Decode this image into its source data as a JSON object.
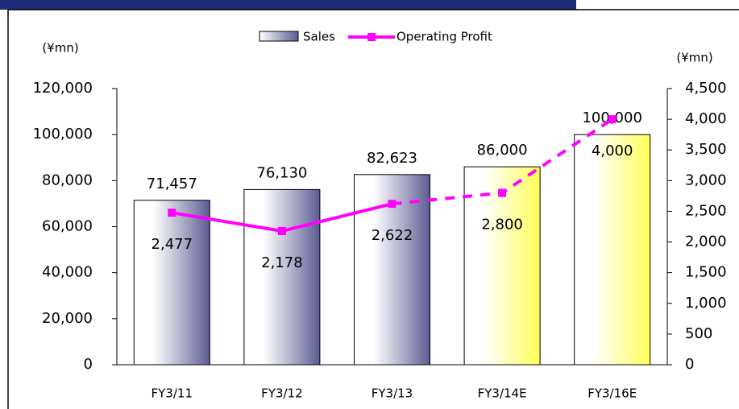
{
  "chart_data": {
    "type": "bar_line",
    "categories": [
      "FY3/11",
      "FY3/12",
      "FY3/13",
      "FY3/14E",
      "FY3/16E"
    ],
    "ylabel": "(¥mn)",
    "y2label": "(¥mn)",
    "series": [
      {
        "name": "Sales",
        "type": "bar",
        "color": "#5a5a92",
        "colors": [
          "#5a5a92",
          "#5a5a92",
          "#5a5a92",
          "#ffff55",
          "#ffff55"
        ],
        "values": [
          71457,
          76130,
          82623,
          86000,
          100000
        ],
        "value_labels": [
          "71,457",
          "76,130",
          "82,623",
          "86,000",
          "100,000"
        ]
      },
      {
        "name": "Operating Profit",
        "type": "line",
        "axis": "y2",
        "color": "#ff00ff",
        "dash_from_index": 2,
        "values": [
          2477,
          2178,
          2622,
          2800,
          4000
        ],
        "value_labels": [
          "2,477",
          "2,178",
          "2,622",
          "2,800",
          "4,000"
        ]
      }
    ],
    "ylim": [
      0,
      120000
    ],
    "yticks": [
      0,
      {
        "value": 20000,
        "label": "20,000"
      },
      {
        "value": 40000,
        "label": "40,000"
      },
      {
        "value": 60000,
        "label": "60,000"
      },
      {
        "value": 80000,
        "label": "80,000"
      },
      {
        "value": 100000,
        "label": "100,000"
      },
      {
        "value": 120000,
        "label": "120,000"
      }
    ],
    "y2lim": [
      0,
      4500
    ],
    "y2ticks": [
      0,
      500,
      {
        "value": 1000,
        "label": "1,000"
      },
      {
        "value": 1500,
        "label": "1,500"
      },
      {
        "value": 2000,
        "label": "2,000"
      },
      {
        "value": 2500,
        "label": "2,500"
      },
      {
        "value": 3000,
        "label": "3,000"
      },
      {
        "value": 3500,
        "label": "3,500"
      },
      {
        "value": 4000,
        "label": "4,000"
      },
      {
        "value": 4500,
        "label": "4,500"
      }
    ],
    "legend": "top"
  }
}
